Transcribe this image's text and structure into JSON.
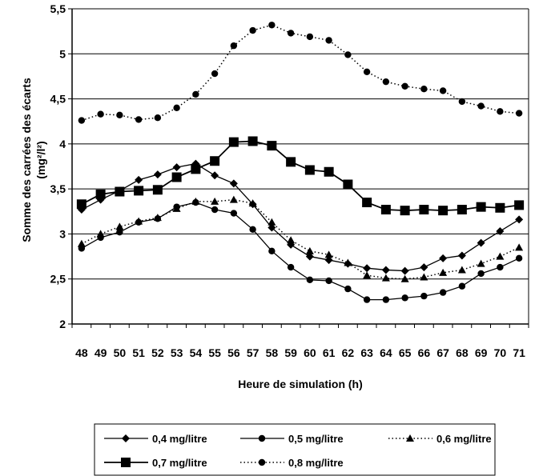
{
  "chart_data": {
    "type": "line",
    "xlabel": "Heure de simulation (h)",
    "ylabel_line1": "Somme des carrées des écarts",
    "ylabel_line2": "(mg²/l²)",
    "ylim": [
      2,
      5.5
    ],
    "yticks": [
      "2",
      "2,5",
      "3",
      "3,5",
      "4",
      "4,5",
      "5",
      "5,5"
    ],
    "ytick_values": [
      2,
      2.5,
      3,
      3.5,
      4,
      4.5,
      5,
      5.5
    ],
    "grid": true,
    "legend_position": "bottom",
    "x": [
      48,
      49,
      50,
      51,
      52,
      53,
      54,
      55,
      56,
      57,
      58,
      59,
      60,
      61,
      62,
      63,
      64,
      65,
      66,
      67,
      68,
      69,
      70,
      71
    ],
    "x_labels": [
      "48",
      "49",
      "50",
      "51",
      "52",
      "53",
      "54",
      "55",
      "56",
      "57",
      "58",
      "59",
      "60",
      "61",
      "62",
      "63",
      "64",
      "65",
      "66",
      "67",
      "68",
      "69",
      "70",
      "71"
    ],
    "series": [
      {
        "name": "0,4 mg/litre",
        "marker": "diamond",
        "dash": "solid",
        "values": [
          3.27,
          3.38,
          3.48,
          3.6,
          3.66,
          3.74,
          3.78,
          3.65,
          3.56,
          3.33,
          3.07,
          2.88,
          2.75,
          2.71,
          2.67,
          2.62,
          2.6,
          2.59,
          2.63,
          2.73,
          2.76,
          2.9,
          3.03,
          3.16
        ]
      },
      {
        "name": "0,5 mg/litre",
        "marker": "circle",
        "dash": "solid",
        "values": [
          2.84,
          2.96,
          3.02,
          3.13,
          3.17,
          3.3,
          3.35,
          3.27,
          3.23,
          3.05,
          2.81,
          2.63,
          2.49,
          2.48,
          2.39,
          2.27,
          2.27,
          2.29,
          2.31,
          2.35,
          2.42,
          2.56,
          2.63,
          2.73
        ]
      },
      {
        "name": "0,6 mg/litre",
        "marker": "triangle",
        "dash": "dotted",
        "values": [
          2.89,
          3.0,
          3.08,
          3.14,
          3.18,
          3.28,
          3.36,
          3.36,
          3.38,
          3.34,
          3.13,
          2.93,
          2.81,
          2.77,
          2.68,
          2.54,
          2.51,
          2.5,
          2.52,
          2.57,
          2.6,
          2.67,
          2.75,
          2.85
        ]
      },
      {
        "name": "0,7 mg/litre",
        "marker": "square",
        "dash": "solid",
        "values": [
          3.33,
          3.44,
          3.47,
          3.48,
          3.49,
          3.63,
          3.72,
          3.81,
          4.02,
          4.03,
          3.98,
          3.8,
          3.71,
          3.69,
          3.55,
          3.35,
          3.27,
          3.26,
          3.27,
          3.26,
          3.27,
          3.3,
          3.29,
          3.32
        ]
      },
      {
        "name": "0,8 mg/litre",
        "marker": "circle",
        "dash": "dotted",
        "values": [
          4.26,
          4.33,
          4.32,
          4.27,
          4.29,
          4.4,
          4.55,
          4.78,
          5.09,
          5.26,
          5.32,
          5.23,
          5.19,
          5.15,
          4.99,
          4.8,
          4.69,
          4.64,
          4.61,
          4.59,
          4.47,
          4.42,
          4.36,
          4.34
        ]
      }
    ]
  }
}
